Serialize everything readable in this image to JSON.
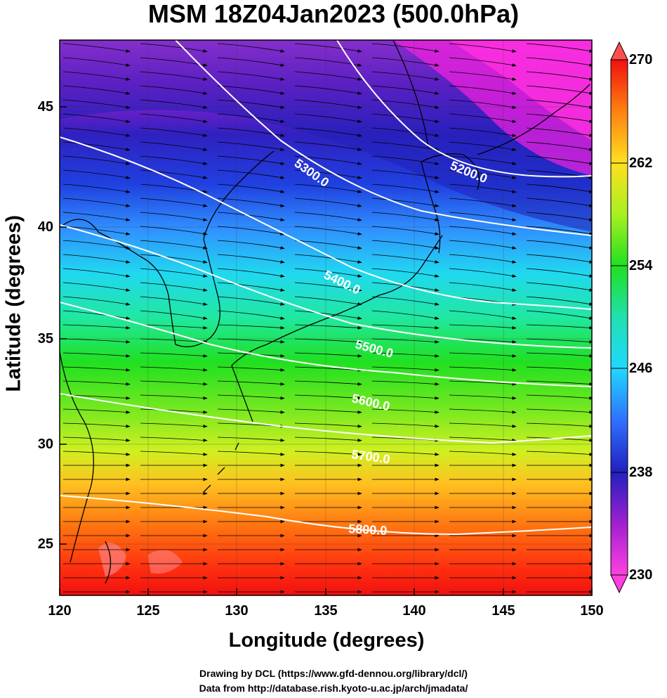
{
  "title": "MSM 18Z04Jan2023 (500.0hPa)",
  "x_axis": {
    "label": "Longitude (degrees)",
    "ticks": [
      "120",
      "125",
      "130",
      "135",
      "140",
      "145",
      "150"
    ]
  },
  "y_axis": {
    "label": "Latitude  (degrees)",
    "ticks": [
      "25",
      "30",
      "35",
      "40",
      "45"
    ]
  },
  "colorbar": {
    "ticks": [
      "270",
      "262",
      "254",
      "246",
      "238",
      "230"
    ],
    "min": 230,
    "max": 270,
    "colors": [
      "#ff40e0",
      "#9020d0",
      "#2020d0",
      "#3070ff",
      "#20e0ff",
      "#20e8b0",
      "#20e020",
      "#a8f020",
      "#ffe020",
      "#ff9010",
      "#ff3010",
      "#f01010"
    ]
  },
  "contours": [
    {
      "label": "5200.0",
      "value": 5200
    },
    {
      "label": "5300.0",
      "value": 5300
    },
    {
      "label": "5400.0",
      "value": 5400
    },
    {
      "label": "5500.0",
      "value": 5500
    },
    {
      "label": "5600.0",
      "value": 5600
    },
    {
      "label": "5700.0",
      "value": 5700
    },
    {
      "label": "5800.0",
      "value": 5800
    }
  ],
  "credits": {
    "line1": "Drawing by DCL (https://www.gfd-dennou.org/library/dcl/)",
    "line2": "Data from http://database.rish.kyoto-u.ac.jp/arch/jmadata/"
  }
}
